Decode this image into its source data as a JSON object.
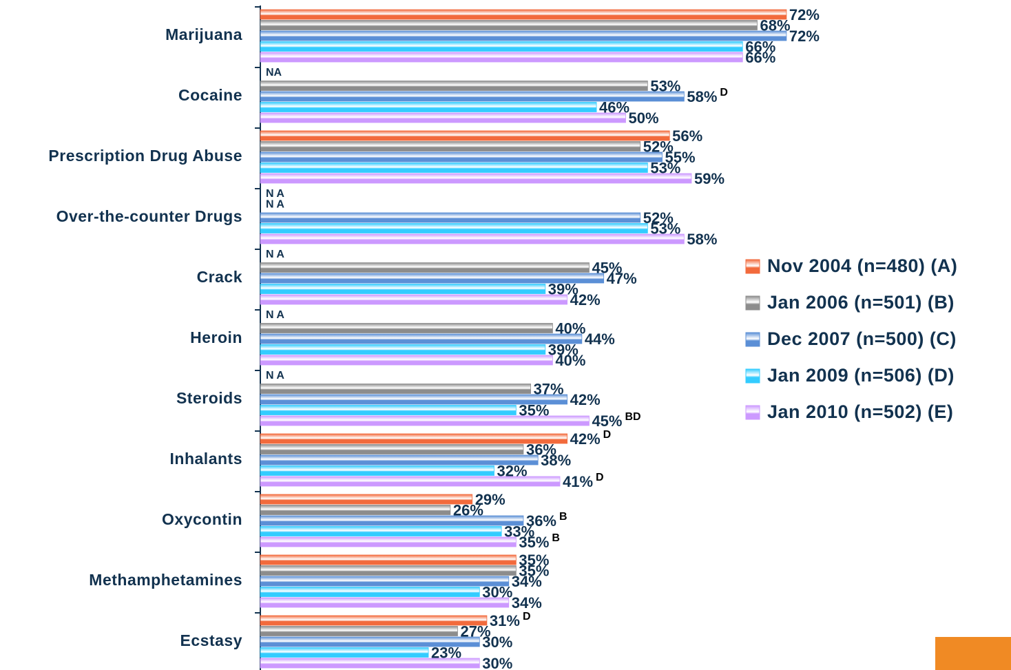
{
  "chart_data": {
    "type": "bar",
    "orientation": "horizontal",
    "categories": [
      "Marijuana",
      "Cocaine",
      "Prescription Drug Abuse",
      "Over-the-counter Drugs",
      "Crack",
      "Heroin",
      "Steroids",
      "Inhalants",
      "Oxycontin",
      "Methamphetamines",
      "Ecstasy"
    ],
    "xlim": [
      0,
      100
    ],
    "legend": "right",
    "series": [
      {
        "name": "Nov 2004 (n=480) (A)",
        "color": "#f26a3c",
        "values": [
          72,
          null,
          56,
          null,
          null,
          null,
          null,
          42,
          29,
          35,
          31
        ],
        "value_labels": [
          "72%",
          "NA",
          "56%",
          "N A",
          "N A",
          "N A",
          "N A",
          "42%",
          "29%",
          "35%",
          "31%"
        ],
        "significance": [
          null,
          null,
          null,
          null,
          null,
          null,
          null,
          "D",
          null,
          null,
          "D"
        ]
      },
      {
        "name": "Jan 2006 (n=501) (B)",
        "color": "#8c8c8c",
        "values": [
          68,
          53,
          52,
          null,
          45,
          40,
          37,
          36,
          26,
          35,
          27
        ],
        "value_labels": [
          "68%",
          "53%",
          "52%",
          "N A",
          "45%",
          "40%",
          "37%",
          "36%",
          "26%",
          "35%",
          "27%"
        ],
        "significance": [
          null,
          null,
          null,
          null,
          null,
          null,
          null,
          null,
          null,
          null,
          null
        ]
      },
      {
        "name": "Dec 2007 (n=500) (C)",
        "color": "#5b8fd6",
        "values": [
          72,
          58,
          55,
          52,
          47,
          44,
          42,
          38,
          36,
          34,
          30
        ],
        "value_labels": [
          "72%",
          "58%",
          "55%",
          "52%",
          "47%",
          "44%",
          "42%",
          "38%",
          "36%",
          "34%",
          "30%"
        ],
        "significance": [
          null,
          "D",
          null,
          null,
          null,
          null,
          null,
          null,
          "B",
          null,
          null
        ]
      },
      {
        "name": "Jan 2009 (n=506) (D)",
        "color": "#33ccff",
        "values": [
          66,
          46,
          53,
          53,
          39,
          39,
          35,
          32,
          33,
          30,
          23
        ],
        "value_labels": [
          "66%",
          "46%",
          "53%",
          "53%",
          "39%",
          "39%",
          "35%",
          "32%",
          "33%",
          "30%",
          "23%"
        ],
        "significance": [
          null,
          null,
          null,
          null,
          null,
          null,
          null,
          null,
          null,
          null,
          null
        ]
      },
      {
        "name": "Jan 2010 (n=502) (E)",
        "color": "#cc99ff",
        "values": [
          66,
          50,
          59,
          58,
          42,
          40,
          45,
          41,
          35,
          34,
          30
        ],
        "value_labels": [
          "66%",
          "50%",
          "59%",
          "58%",
          "42%",
          "40%",
          "45%",
          "41%",
          "35%",
          "34%",
          "30%"
        ],
        "significance": [
          null,
          null,
          null,
          null,
          null,
          null,
          "BD",
          "D",
          "B",
          null,
          null
        ]
      }
    ]
  }
}
